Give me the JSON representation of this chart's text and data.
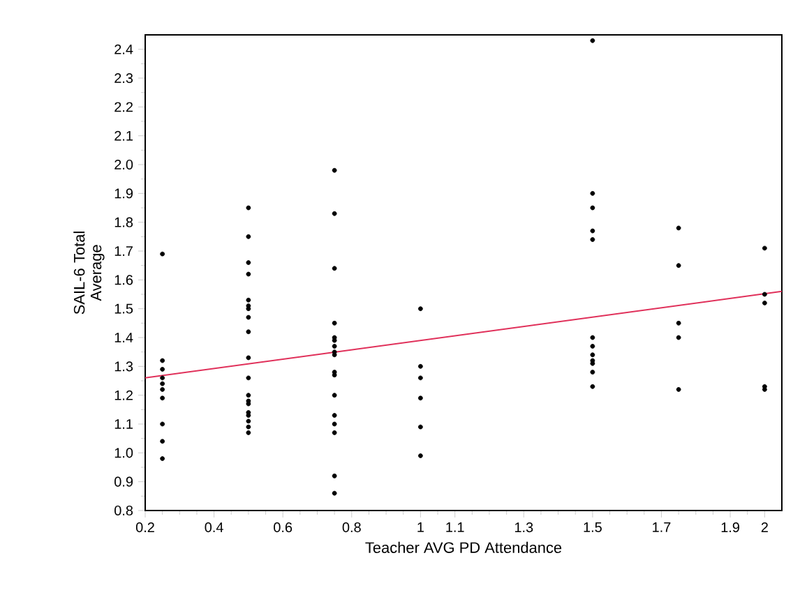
{
  "chart_data": {
    "type": "scatter",
    "xlabel": "Teacher AVG PD Attendance",
    "ylabel": "SAIL-6 Total Average",
    "xlim": [
      0.2,
      2.05
    ],
    "ylim": [
      0.8,
      2.45
    ],
    "xticks": [
      0.2,
      0.4,
      0.6,
      0.8,
      1,
      1.1,
      1.3,
      1.5,
      1.7,
      1.9,
      2
    ],
    "yticks": [
      {
        "value": 0.8,
        "label": "0.8"
      },
      {
        "value": 0.9,
        "label": "0.9"
      },
      {
        "value": 1.0,
        "label": "1.0"
      },
      1.1,
      1.2,
      1.3,
      1.4,
      1.5,
      1.6,
      1.7,
      1.8,
      1.9,
      {
        "value": 2.0,
        "label": "2.0"
      },
      2.1,
      2.2,
      2.3,
      2.4
    ],
    "series": [
      {
        "color": "#000000",
        "x": [
          0.25,
          0.25,
          0.25,
          0.25,
          0.25,
          0.25,
          0.25,
          0.25,
          0.25,
          0.25,
          0.5,
          0.5,
          0.5,
          0.5,
          0.5,
          0.5,
          0.5,
          0.5,
          0.5,
          0.5,
          0.5,
          0.5,
          0.5,
          0.5,
          0.5,
          0.5,
          0.5,
          0.5,
          0.5,
          0.75,
          0.75,
          0.75,
          0.75,
          0.75,
          0.75,
          0.75,
          0.75,
          0.75,
          0.75,
          0.75,
          0.75,
          0.75,
          0.75,
          0.75,
          0.75,
          0.75,
          1,
          1,
          1,
          1,
          1,
          1,
          1.5,
          1.5,
          1.5,
          1.5,
          1.5,
          1.5,
          1.5,
          1.5,
          1.5,
          1.5,
          1.5,
          1.5,
          1.75,
          1.75,
          1.75,
          1.75,
          1.75,
          2,
          2,
          2,
          2,
          2
        ],
        "values": [
          1.69,
          1.32,
          1.29,
          1.26,
          1.24,
          1.22,
          1.19,
          1.1,
          1.04,
          0.98,
          1.85,
          1.75,
          1.66,
          1.62,
          1.53,
          1.51,
          1.5,
          1.47,
          1.42,
          1.33,
          1.26,
          1.2,
          1.18,
          1.17,
          1.14,
          1.13,
          1.11,
          1.09,
          1.07,
          1.98,
          1.83,
          1.64,
          1.45,
          1.4,
          1.39,
          1.37,
          1.35,
          1.34,
          1.28,
          1.27,
          1.2,
          1.13,
          1.1,
          1.07,
          0.92,
          0.86,
          1.5,
          1.3,
          1.26,
          1.19,
          1.09,
          0.99,
          2.43,
          1.9,
          1.85,
          1.77,
          1.74,
          1.4,
          1.37,
          1.34,
          1.32,
          1.31,
          1.28,
          1.23,
          1.78,
          1.65,
          1.45,
          1.4,
          1.22,
          1.71,
          1.55,
          1.52,
          1.23,
          1.22
        ]
      },
      {
        "type": "line",
        "color": "#e0305a",
        "x": [
          0.2,
          2.05
        ],
        "values": [
          1.26,
          1.56
        ]
      }
    ]
  }
}
